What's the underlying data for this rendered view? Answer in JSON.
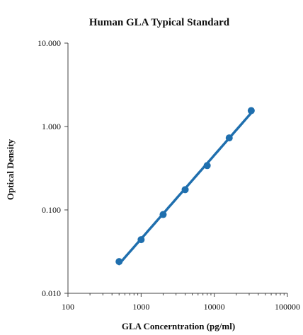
{
  "chart_data": {
    "type": "scatter",
    "title": "Human GLA Typical Standard",
    "xlabel": "GLA Concerntration (pg/ml)",
    "ylabel": "Optical Density",
    "xscale": "log",
    "yscale": "log",
    "xlim": [
      100,
      100000
    ],
    "ylim": [
      0.01,
      10
    ],
    "x_ticks": [
      "100",
      "1000",
      "10000",
      "100000"
    ],
    "y_ticks": [
      "0.010",
      "0.100",
      "1.000",
      "10.000"
    ],
    "grid": false,
    "legend": "none",
    "series": [
      {
        "x": [
          500,
          1000,
          2000,
          4000,
          8000,
          16000,
          32000
        ],
        "y": [
          0.024,
          0.044,
          0.088,
          0.175,
          0.34,
          0.73,
          1.55
        ],
        "marker": "circle",
        "line": "fitted"
      }
    ],
    "color": "#1f6fae"
  }
}
